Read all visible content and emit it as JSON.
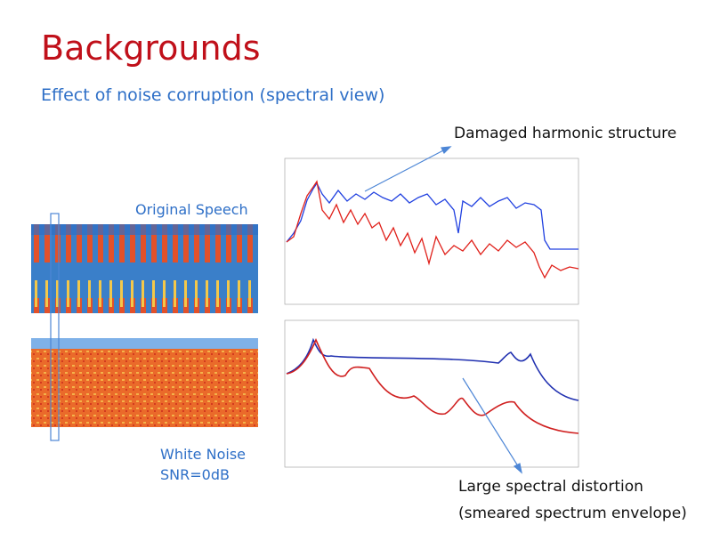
{
  "slide": {
    "title": "Backgrounds",
    "subtitle": "Effect of noise corruption (spectral view)",
    "annotations": {
      "harmonic": "Damaged harmonic structure",
      "original": "Original Speech",
      "noise": "White Noise",
      "snr": "SNR=0dB",
      "distortion": "Large spectral distortion",
      "envelope": "(smeared spectrum envelope)"
    }
  }
}
